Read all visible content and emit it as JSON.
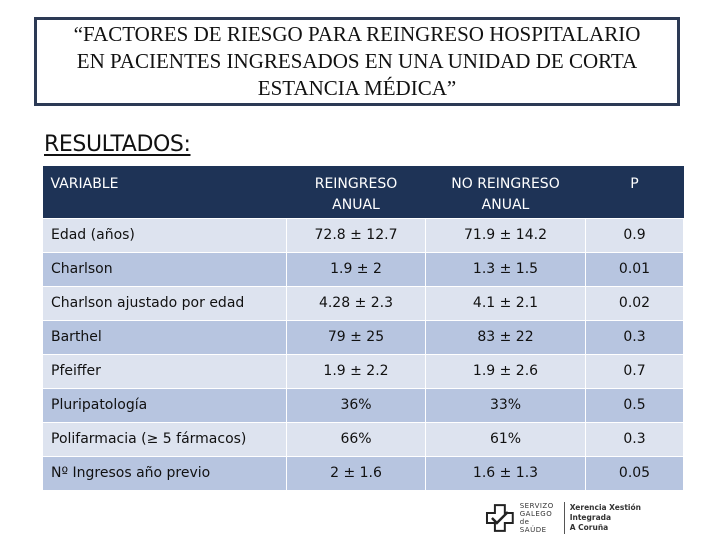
{
  "title": "“FACTORES DE RIESGO PARA REINGRESO HOSPITALARIO\nEN PACIENTES INGRESADOS EN UNA UNIDAD DE CORTA\nESTANCIA MÉDICA”",
  "section_heading": "RESULTADOS:",
  "table": {
    "headers": [
      "VARIABLE",
      "REINGRESO\nANUAL",
      "NO REINGRESO\nANUAL",
      "P"
    ],
    "rows": [
      [
        "Edad (años)",
        "72.8 ± 12.7",
        "71.9 ± 14.2",
        "0.9"
      ],
      [
        "Charlson",
        "1.9 ± 2",
        "1.3 ± 1.5",
        "0.01"
      ],
      [
        "Charlson ajustado por edad",
        "4.28 ± 2.3",
        "4.1 ± 2.1",
        "0.02"
      ],
      [
        "Barthel",
        "79 ± 25",
        "83 ± 22",
        "0.3"
      ],
      [
        "Pfeiffer",
        "1.9 ± 2.2",
        "1.9 ± 2.6",
        "0.7"
      ],
      [
        "Pluripatología",
        "36%",
        "33%",
        "0.5"
      ],
      [
        "Polifarmacia (≥ 5 fármacos)",
        "66%",
        "61%",
        "0.3"
      ],
      [
        "Nº Ingresos año previo",
        "2 ± 1.6",
        "1.6 ± 1.3",
        "0.05"
      ]
    ]
  },
  "logo": {
    "main": "SERVIZO\nGALEGO\nde SAÚDE",
    "sub": "Xerencia Xestión Integrada\nA Coruña",
    "icon": "servizo-galego-cross-icon"
  },
  "colors": {
    "header_bg": "#1e3356",
    "row_light": "#dde3ef",
    "row_dark": "#b7c5e0",
    "title_border": "#2c3a55"
  }
}
